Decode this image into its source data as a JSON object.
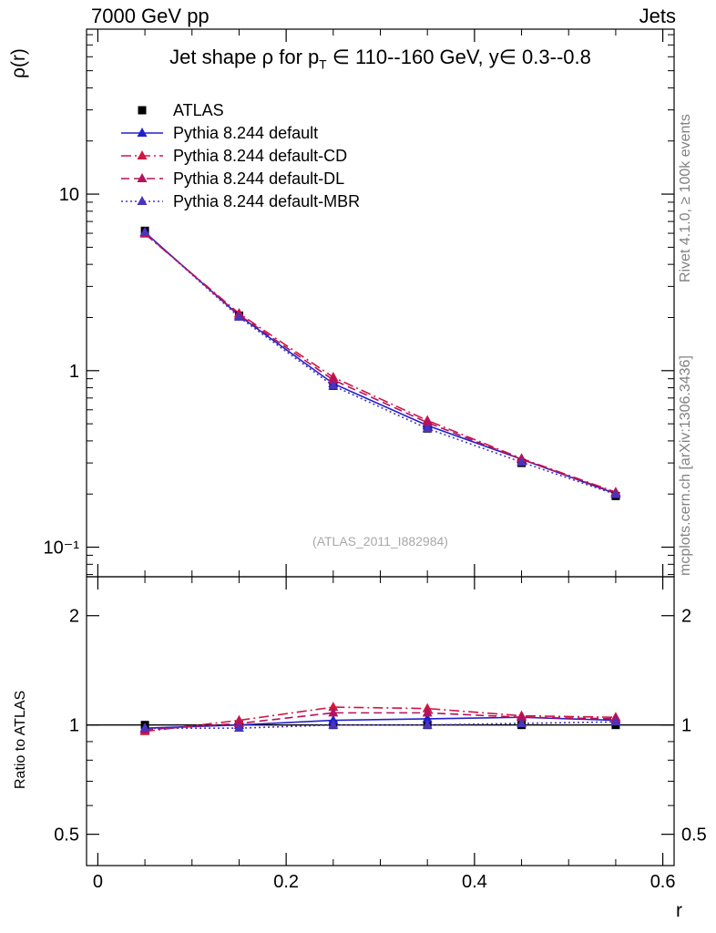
{
  "header": {
    "left": "7000 GeV pp",
    "right": "Jets"
  },
  "title": {
    "pre": "Jet shape ρ for p",
    "sub": "T",
    "post": " ∈ 110--160 GeV, y∈ 0.3--0.8"
  },
  "side_notes": {
    "top": "Rivet 4.1.0, ≥ 100k events",
    "bottom": "mcplots.cern.ch [arXiv:1306.3436]"
  },
  "watermark": "(ATLAS_2011_I882984)",
  "axis_labels": {
    "y_main": "ρ(r)",
    "y_ratio": "Ratio to ATLAS",
    "x": "r"
  },
  "chart_data": {
    "type": "line",
    "x": [
      0.05,
      0.15,
      0.25,
      0.35,
      0.45,
      0.55
    ],
    "xlim": [
      -0.012,
      0.612
    ],
    "x_ticks": [
      {
        "v": 0,
        "label": "0"
      },
      {
        "v": 0.2,
        "label": "0.2"
      },
      {
        "v": 0.4,
        "label": "0.4"
      },
      {
        "v": 0.6,
        "label": "0.6"
      }
    ],
    "x_minor_step": 0.05,
    "main": {
      "ylog": true,
      "ylim": [
        0.068,
        86
      ],
      "y_ticks": [
        {
          "v": 10,
          "label": "10"
        },
        {
          "v": 1,
          "label": "1"
        },
        {
          "v": 0.1,
          "label": "10⁻¹"
        }
      ]
    },
    "ratio": {
      "ylog": true,
      "ylim": [
        0.41,
        2.56
      ],
      "y_ticks": [
        {
          "v": 2,
          "label": "2"
        },
        {
          "v": 1,
          "label": "1"
        },
        {
          "v": 0.5,
          "label": "0.5"
        }
      ],
      "y_minor": [
        0.6,
        0.7,
        0.8,
        0.9
      ]
    },
    "series": [
      {
        "name": "ATLAS",
        "marker": "square",
        "color": "#000000",
        "line": "none",
        "values": [
          6.2,
          2.05,
          0.82,
          0.47,
          0.3,
          0.195
        ],
        "ratio": [
          1,
          1,
          1,
          1,
          1,
          1
        ]
      },
      {
        "name": "Pythia 8.244 default",
        "marker": "triangle",
        "color": "#2121cc",
        "line": "solid",
        "values": [
          6.08,
          2.05,
          0.845,
          0.489,
          0.315,
          0.201
        ],
        "ratio": [
          0.98,
          1.0,
          1.03,
          1.04,
          1.05,
          1.03
        ]
      },
      {
        "name": "Pythia 8.244 default-CD",
        "marker": "triangle",
        "color": "#cf1743",
        "line": "dashdot",
        "values": [
          5.95,
          2.11,
          0.918,
          0.522,
          0.318,
          0.205
        ],
        "ratio": [
          0.96,
          1.03,
          1.12,
          1.11,
          1.06,
          1.05
        ]
      },
      {
        "name": "Pythia 8.244 default-DL",
        "marker": "triangle",
        "color": "#b2125f",
        "line": "dash",
        "values": [
          6.01,
          2.07,
          0.886,
          0.508,
          0.315,
          0.203
        ],
        "ratio": [
          0.97,
          1.01,
          1.08,
          1.08,
          1.05,
          1.04
        ]
      },
      {
        "name": "Pythia 8.244 default-MBR",
        "marker": "triangle",
        "color": "#4b34bd",
        "line": "dot",
        "values": [
          6.08,
          2.01,
          0.82,
          0.47,
          0.303,
          0.199
        ],
        "ratio": [
          0.98,
          0.98,
          1.0,
          1.0,
          1.01,
          1.02
        ]
      }
    ]
  }
}
